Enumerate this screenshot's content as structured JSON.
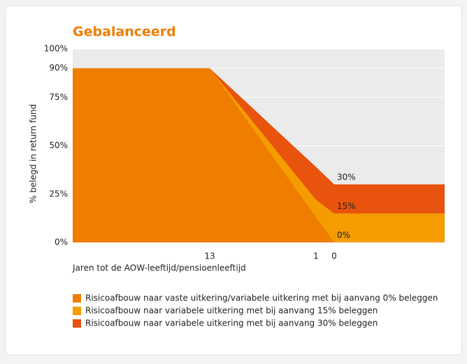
{
  "chart_data": {
    "type": "area",
    "title": "Gebalanceerd",
    "ylabel": "% belegd in return fund",
    "xlabel": "Jaren tot de AOW-leeftijd/pensioenleeftijd",
    "categories": [
      null,
      "13",
      "1",
      "0",
      null
    ],
    "ylim": [
      0,
      100
    ],
    "yticks": [
      {
        "value": 0,
        "label": "0%"
      },
      {
        "value": 25,
        "label": "25%"
      },
      {
        "value": 50,
        "label": "50%"
      },
      {
        "value": 75,
        "label": "75%"
      },
      {
        "value": 90,
        "label": "90%"
      },
      {
        "value": 100,
        "label": "100%"
      }
    ],
    "grid": true,
    "series": [
      {
        "name": "Risicoafbouw naar vaste uitkering/variabele uitkering met bij aanvang 0% beleggen",
        "color": "#ef7d00",
        "values": [
          90,
          90,
          13,
          0,
          0
        ],
        "value_labels": [
          null,
          null,
          null,
          "0%",
          null
        ]
      },
      {
        "name": "Risicoafbouw naar variabele uitkering met bij aanvang 15% beleggen",
        "color": "#f59c00",
        "values": [
          90,
          90,
          22,
          15,
          15
        ],
        "value_labels": [
          null,
          null,
          null,
          "15%",
          null
        ]
      },
      {
        "name": "Risicoafbouw naar variabele uitkering met bij aanvang 30% beleggen",
        "color": "#e8530e",
        "values": [
          90,
          90,
          39,
          30,
          30
        ],
        "value_labels": [
          null,
          null,
          null,
          "30%",
          null
        ]
      }
    ]
  }
}
